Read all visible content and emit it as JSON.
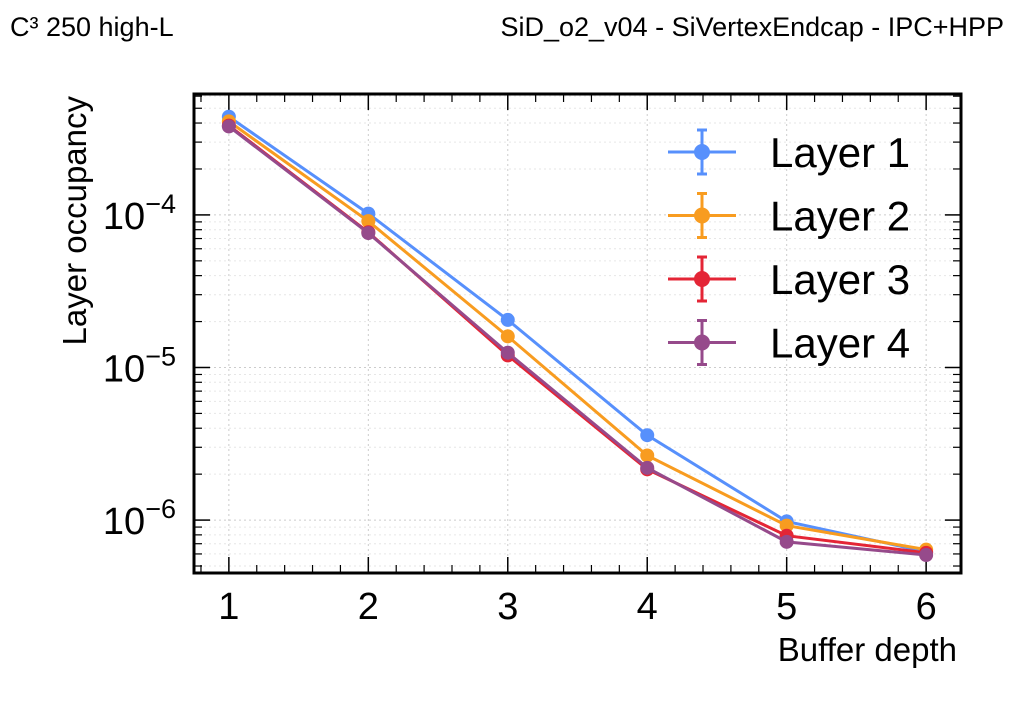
{
  "header": {
    "left_label": "C³ 250 high-L",
    "right_label": "SiD_o2_v04 - SiVertexEndcap - IPC+HPP"
  },
  "chart_data": {
    "type": "line",
    "title": "",
    "xlabel": "Buffer depth",
    "ylabel": "Layer occupancy",
    "yscale": "log",
    "x": [
      1,
      2,
      3,
      4,
      5,
      6
    ],
    "xlim": [
      0.75,
      6.25
    ],
    "ylim": [
      4.5e-07,
      0.00062
    ],
    "x_ticks": [
      "1",
      "2",
      "3",
      "4",
      "5",
      "6"
    ],
    "y_ticks": [
      {
        "value": 1e-06,
        "base": "10",
        "exp": "−6"
      },
      {
        "value": 1e-05,
        "base": "10",
        "exp": "−5"
      },
      {
        "value": 0.0001,
        "base": "10",
        "exp": "−4"
      }
    ],
    "grid": true,
    "legend_position": "top-right",
    "series": [
      {
        "name": "Layer 1",
        "color": "#5790fc",
        "values": [
          0.00044,
          0.000102,
          2.05e-05,
          3.6e-06,
          9.8e-07,
          6.2e-07
        ]
      },
      {
        "name": "Layer 2",
        "color": "#f89c20",
        "values": [
          0.00041,
          9.1e-05,
          1.6e-05,
          2.65e-06,
          9.2e-07,
          6.4e-07
        ]
      },
      {
        "name": "Layer 3",
        "color": "#e42536",
        "values": [
          0.000385,
          7.7e-05,
          1.2e-05,
          2.15e-06,
          7.9e-07,
          6.1e-07
        ]
      },
      {
        "name": "Layer 4",
        "color": "#964a8b",
        "values": [
          0.00038,
          7.6e-05,
          1.25e-05,
          2.2e-06,
          7.2e-07,
          5.9e-07
        ]
      }
    ]
  }
}
